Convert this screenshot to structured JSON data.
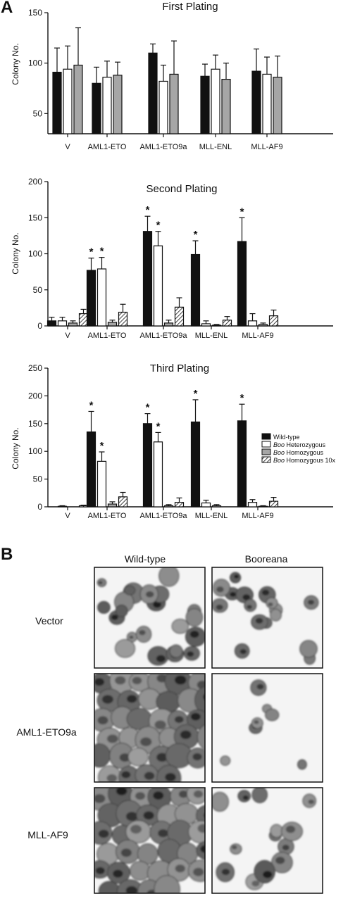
{
  "panels": {
    "a": "A",
    "b": "B"
  },
  "legend": [
    {
      "italic": "",
      "label": "Wild-type",
      "style": "black"
    },
    {
      "italic": "Boo",
      "label": " Heterozygous",
      "style": "white"
    },
    {
      "italic": "Boo",
      "label": " Homozygous",
      "style": "gray"
    },
    {
      "italic": "Boo",
      "label": " Homozygous 10x",
      "style": "hatch"
    }
  ],
  "colors": {
    "black": "#111111",
    "white": "#ffffff",
    "gray": "#a6a6a6",
    "stroke": "#111111"
  },
  "chart_data": [
    {
      "type": "bar",
      "title": "First Plating",
      "ylabel": "Colony No.",
      "ylim": [
        30,
        150
      ],
      "yticks": [
        "50",
        "100",
        "150"
      ],
      "categories": [
        "V",
        "AML1-ETO",
        "AML1-ETO9a",
        "MLL-ENL",
        "MLL-AF9"
      ],
      "series": [
        {
          "style": "black",
          "values": [
            91,
            80,
            110,
            87,
            92
          ],
          "errors": [
            24,
            16,
            9,
            12,
            22
          ]
        },
        {
          "style": "white",
          "values": [
            94,
            86,
            82,
            94,
            89
          ],
          "errors": [
            23,
            16,
            16,
            14,
            17
          ]
        },
        {
          "style": "gray",
          "values": [
            98,
            88,
            89,
            84,
            86
          ],
          "errors": [
            37,
            13,
            33,
            16,
            21
          ]
        }
      ],
      "stars": []
    },
    {
      "type": "bar",
      "title": "Second Plating",
      "ylabel": "Colony No.",
      "ylim": [
        0,
        200
      ],
      "yticks": [
        "0",
        "50",
        "100",
        "150",
        "200"
      ],
      "categories": [
        "V",
        "AML1-ETO",
        "AML1-ETO9a",
        "MLL-ENL",
        "MLL-AF9"
      ],
      "series": [
        {
          "style": "black",
          "values": [
            7,
            77,
            131,
            99,
            117
          ],
          "errors": [
            5,
            17,
            21,
            19,
            33
          ]
        },
        {
          "style": "white",
          "values": [
            7,
            79,
            111,
            3,
            7
          ],
          "errors": [
            5,
            16,
            20,
            4,
            10
          ]
        },
        {
          "style": "gray",
          "values": [
            4,
            5,
            4,
            1,
            2
          ],
          "errors": [
            3,
            3,
            4,
            1,
            2
          ]
        },
        {
          "style": "hatch",
          "values": [
            17,
            19,
            26,
            8,
            14
          ],
          "errors": [
            6,
            11,
            13,
            5,
            8
          ]
        }
      ],
      "stars": [
        {
          "category": 1,
          "series": 0,
          "text": "*"
        },
        {
          "category": 1,
          "series": 1,
          "text": "*"
        },
        {
          "category": 2,
          "series": 0,
          "text": "*"
        },
        {
          "category": 2,
          "series": 1,
          "text": "*"
        },
        {
          "category": 3,
          "series": 0,
          "text": "*"
        },
        {
          "category": 4,
          "series": 0,
          "text": "*"
        }
      ]
    },
    {
      "type": "bar",
      "title": "Third Plating",
      "ylabel": "Colony No.",
      "ylim": [
        0,
        250
      ],
      "yticks": [
        "0",
        "50",
        "100",
        "150",
        "200",
        "250"
      ],
      "categories": [
        "V",
        "AML1-ETO",
        "AML1-ETO9a",
        "MLL-ENL",
        "MLL-AF9"
      ],
      "series": [
        {
          "style": "black",
          "values": [
            0,
            135,
            150,
            153,
            155
          ],
          "errors": [
            0,
            37,
            18,
            40,
            30
          ]
        },
        {
          "style": "white",
          "values": [
            1,
            82,
            117,
            7,
            8
          ],
          "errors": [
            1,
            17,
            17,
            5,
            5
          ]
        },
        {
          "style": "gray",
          "values": [
            0,
            5,
            2,
            2,
            1
          ],
          "errors": [
            0,
            4,
            2,
            2,
            1
          ]
        },
        {
          "style": "hatch",
          "values": [
            2,
            18,
            8,
            0,
            10
          ],
          "errors": [
            1,
            8,
            8,
            0,
            7
          ]
        }
      ],
      "stars": [
        {
          "category": 1,
          "series": 0,
          "text": "*"
        },
        {
          "category": 1,
          "series": 1,
          "text": "*"
        },
        {
          "category": 2,
          "series": 0,
          "text": "*"
        },
        {
          "category": 2,
          "series": 1,
          "text": "*"
        },
        {
          "category": 3,
          "series": 0,
          "text": "*"
        },
        {
          "category": 4,
          "series": 0,
          "text": "*"
        }
      ]
    }
  ],
  "micrographs": {
    "columns": [
      "Wild-type",
      "Booreana"
    ],
    "rows": [
      "Vector",
      "AML1-ETO9a",
      "MLL-AF9"
    ]
  }
}
